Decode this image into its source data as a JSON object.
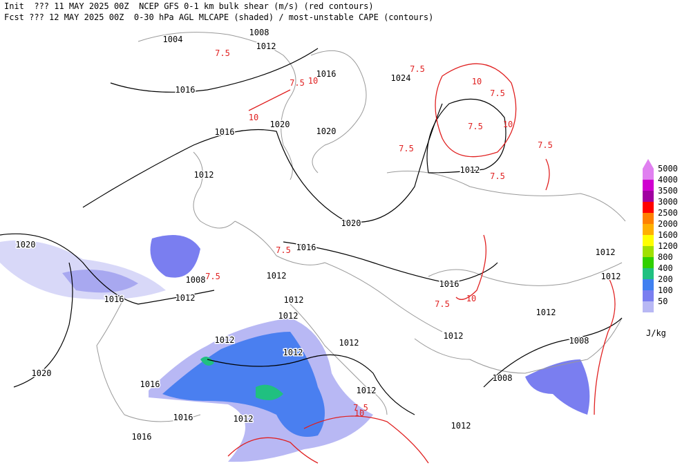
{
  "header": {
    "line1": "Init  ??? 11 MAY 2025 00Z  NCEP GFS 0-1 km bulk shear (m/s) (red contours)",
    "line2": "Fcst ??? 12 MAY 2025 00Z  0-30 hPa AGL MLCAPE (shaded) / most-unstable CAPE (contours)"
  },
  "isobar_labels": [
    1004,
    1008,
    1012,
    1016,
    1016,
    1024,
    1020,
    1020,
    1016,
    1012,
    1012,
    1020,
    1016,
    1020,
    1008,
    1012,
    1016,
    1012,
    1012,
    1012,
    1012,
    1012,
    1012,
    1012,
    1012,
    1016,
    1008,
    1008,
    1012,
    1012,
    1016,
    1016,
    1012,
    1016,
    1020,
    1012,
    1012
  ],
  "shear_labels": [
    7.5,
    10,
    7.5,
    10,
    7.5,
    10,
    7.5,
    7.5,
    10,
    7.5,
    7.5,
    7.5,
    7.5,
    7.5,
    7.5,
    10,
    7.5,
    10
  ],
  "legend": {
    "unit": "J/kg",
    "items": [
      {
        "value": 5000,
        "color": "#e080f0"
      },
      {
        "value": 4000,
        "color": "#d000d0"
      },
      {
        "value": 3500,
        "color": "#a000a0"
      },
      {
        "value": 3000,
        "color": "#ff0000"
      },
      {
        "value": 2500,
        "color": "#ff8000"
      },
      {
        "value": 2000,
        "color": "#ffb000"
      },
      {
        "value": 1600,
        "color": "#ffff00"
      },
      {
        "value": 1200,
        "color": "#a0e000"
      },
      {
        "value": 800,
        "color": "#30d000"
      },
      {
        "value": 400,
        "color": "#20c080"
      },
      {
        "value": 200,
        "color": "#4080f0"
      },
      {
        "value": 100,
        "color": "#7a7ef0"
      },
      {
        "value": 50,
        "color": "#b8b8f4"
      }
    ]
  }
}
